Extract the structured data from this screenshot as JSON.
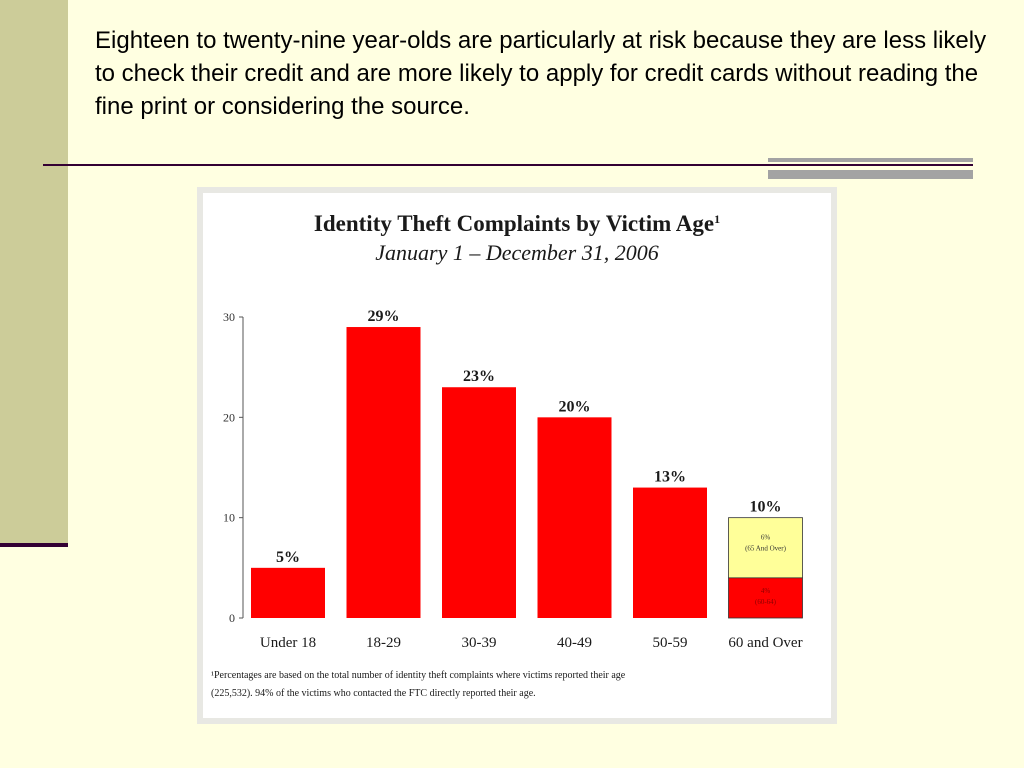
{
  "slide": {
    "text": "Eighteen to twenty-nine year-olds are particularly at risk because they are less likely to check their credit and are more likely to apply for credit cards without reading the fine print or considering the source."
  },
  "colors": {
    "bar": "#ff0000",
    "stack_top": "#ffff99",
    "background": "#ffffe1",
    "accent_bar": "#cccc99"
  },
  "chart_data": {
    "type": "bar",
    "title": "Identity Theft Complaints by Victim Age",
    "title_superscript": "1",
    "subtitle": "January 1 – December 31, 2006",
    "categories": [
      "Under 18",
      "18-29",
      "30-39",
      "40-49",
      "50-59",
      "60 and Over"
    ],
    "values": [
      5,
      29,
      23,
      20,
      13,
      10
    ],
    "data_labels": [
      "5%",
      "29%",
      "23%",
      "20%",
      "13%",
      "10%"
    ],
    "stacked_last": {
      "bottom_value": 4,
      "top_value": 6,
      "bottom_label_pct": "4%",
      "bottom_label_range": "(60-64)",
      "top_label_pct": "6%",
      "top_label_range": "(65 And Over)"
    },
    "yticks": [
      "0",
      "10",
      "20",
      "30"
    ],
    "ylim": [
      0,
      30
    ],
    "footnote_line1": "¹Percentages are based on the total number of identity theft complaints where victims reported their age",
    "footnote_line2": "(225,532).  94% of the victims who contacted the FTC directly reported their age."
  }
}
